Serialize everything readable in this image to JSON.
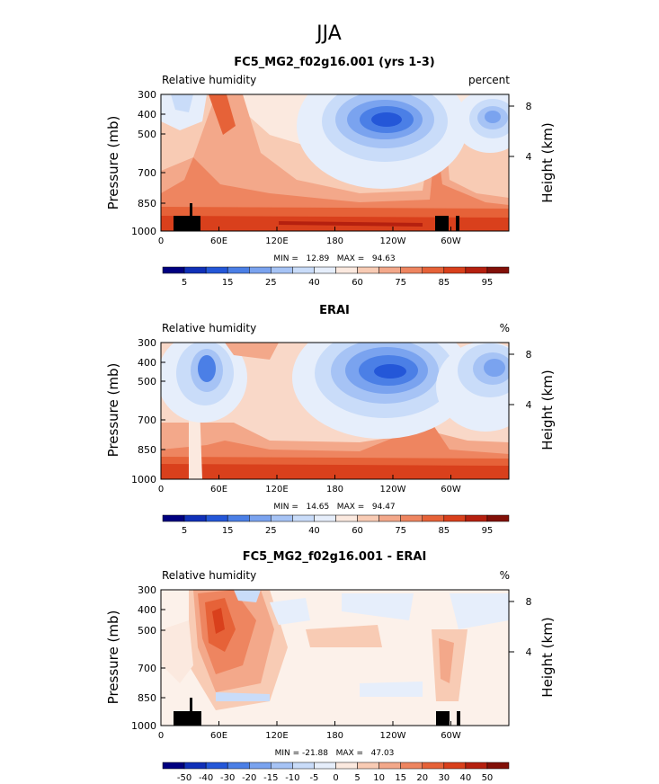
{
  "figure": {
    "season": "JJA"
  },
  "panels": [
    {
      "title": "FC5_MG2_f02g16.001 (yrs 1-3)",
      "left_label": "Relative humidity",
      "right_label": "percent",
      "stats": "MIN =   12.89   MAX =   94.63",
      "colorbar_labels": [
        "5",
        "15",
        "25",
        "40",
        "60",
        "75",
        "85",
        "95"
      ]
    },
    {
      "title": "ERAI",
      "left_label": "Relative humidity",
      "right_label": "%",
      "stats": "MIN =   14.65   MAX =   94.47",
      "colorbar_labels": [
        "5",
        "15",
        "25",
        "40",
        "60",
        "75",
        "85",
        "95"
      ]
    },
    {
      "title": "FC5_MG2_f02g16.001 - ERAI",
      "left_label": "Relative humidity",
      "right_label": "%",
      "stats": "MIN = -21.88   MAX =   47.03",
      "colorbar_labels": [
        "-50",
        "-40",
        "-30",
        "-20",
        "-15",
        "-10",
        "-5",
        "0",
        "5",
        "10",
        "15",
        "20",
        "30",
        "40",
        "50"
      ]
    }
  ],
  "chart_data": [
    {
      "type": "heatmap",
      "title": "FC5_MG2_f02g16.001 (yrs 1-3)",
      "xlabel": "",
      "ylabel": "Pressure (mb)",
      "y2label": "Height (km)",
      "xticks": [
        "0",
        "60E",
        "120E",
        "180",
        "120W",
        "60W"
      ],
      "yticks": [
        "300",
        "400",
        "500",
        "700",
        "850",
        "1000"
      ],
      "y2ticks": [
        "8",
        "4"
      ],
      "min": 12.89,
      "max": 94.63,
      "levels": [
        5,
        10,
        15,
        20,
        25,
        30,
        40,
        50,
        60,
        65,
        75,
        80,
        85,
        90,
        95
      ],
      "units": "percent"
    },
    {
      "type": "heatmap",
      "title": "ERAI",
      "xlabel": "",
      "ylabel": "Pressure (mb)",
      "y2label": "Height (km)",
      "xticks": [
        "0",
        "60E",
        "120E",
        "180",
        "120W",
        "60W"
      ],
      "yticks": [
        "300",
        "400",
        "500",
        "700",
        "850",
        "1000"
      ],
      "y2ticks": [
        "8",
        "4"
      ],
      "min": 14.65,
      "max": 94.47,
      "levels": [
        5,
        10,
        15,
        20,
        25,
        30,
        40,
        50,
        60,
        65,
        75,
        80,
        85,
        90,
        95
      ],
      "units": "%"
    },
    {
      "type": "heatmap",
      "title": "FC5_MG2_f02g16.001 - ERAI",
      "xlabel": "",
      "ylabel": "Pressure (mb)",
      "y2label": "Height (km)",
      "xticks": [
        "0",
        "60E",
        "120E",
        "180",
        "120W",
        "60W"
      ],
      "yticks": [
        "300",
        "400",
        "500",
        "700",
        "850",
        "1000"
      ],
      "y2ticks": [
        "8",
        "4"
      ],
      "min": -21.88,
      "max": 47.03,
      "levels": [
        -50,
        -40,
        -30,
        -20,
        -15,
        -10,
        -5,
        0,
        5,
        10,
        15,
        20,
        30,
        40,
        50
      ],
      "units": "%"
    }
  ],
  "palette": {
    "rh16": [
      "#000080",
      "#1030b8",
      "#2457d8",
      "#4b7fe6",
      "#7aa3ef",
      "#a6c3f5",
      "#c9dcf9",
      "#e6eefb",
      "#fbe9df",
      "#f8cbb4",
      "#f3a88a",
      "#ee8560",
      "#e66238",
      "#d9401c",
      "#b5200f",
      "#821008"
    ],
    "diff16": [
      "#000080",
      "#1030b8",
      "#2457d8",
      "#4b7fe6",
      "#7aa3ef",
      "#a6c3f5",
      "#c9dcf9",
      "#e6eefb",
      "#fbe9df",
      "#f8cbb4",
      "#f3a88a",
      "#ee8560",
      "#e66238",
      "#d9401c",
      "#b5200f",
      "#821008"
    ]
  }
}
